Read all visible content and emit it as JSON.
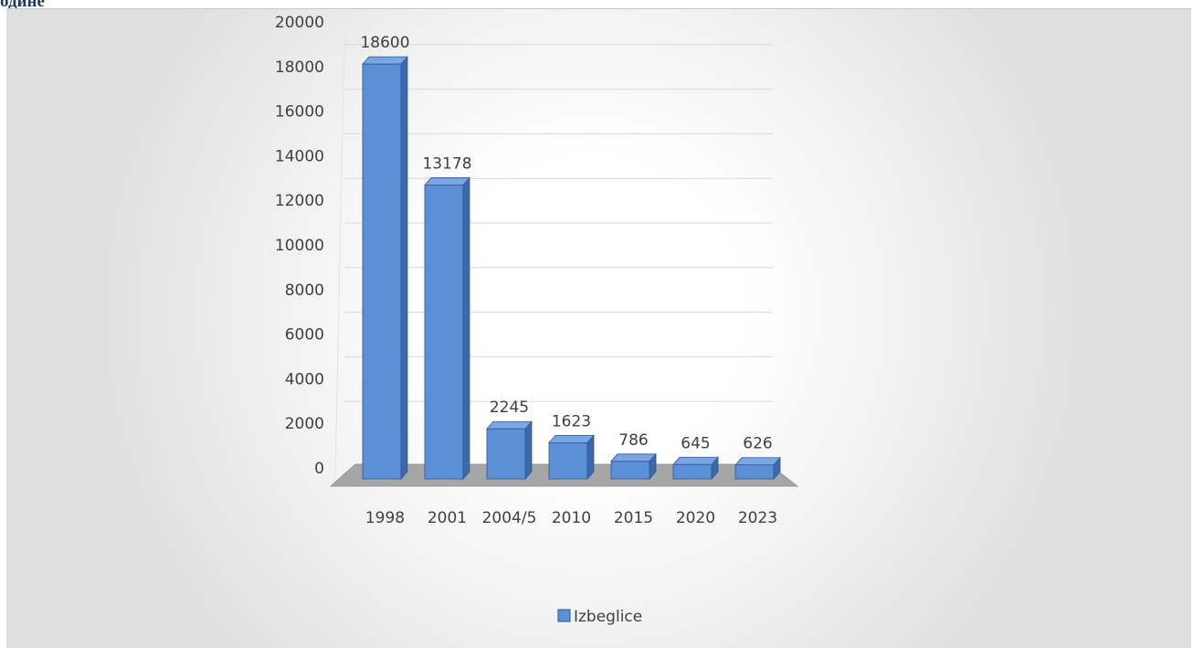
{
  "document": {
    "heading_fragment": "одине"
  },
  "chart_data": {
    "type": "bar",
    "variant": "3d-column",
    "title": "",
    "xlabel": "",
    "ylabel": "",
    "categories": [
      "1998",
      "2001",
      "2004/5",
      "2010",
      "2015",
      "2020",
      "2023"
    ],
    "series": [
      {
        "name": "Izbeglice",
        "values": [
          18600,
          13178,
          2245,
          1623,
          786,
          645,
          626
        ]
      }
    ],
    "data_labels": [
      "18600",
      "13178",
      "2245",
      "1623",
      "786",
      "645",
      "626"
    ],
    "ylim": [
      0,
      20000
    ],
    "yticks": [
      0,
      2000,
      4000,
      6000,
      8000,
      10000,
      12000,
      14000,
      16000,
      18000,
      20000
    ],
    "ytick_labels": [
      "0",
      "2000",
      "4000",
      "6000",
      "8000",
      "10000",
      "12000",
      "14000",
      "16000",
      "18000",
      "20000"
    ],
    "grid": true,
    "legend": "bottom-center",
    "colors": {
      "bar_front": "#5b8fd6",
      "bar_top": "#7aa6e3",
      "bar_side": "#3d69a8",
      "bar_stroke": "#2f5597",
      "floor": "#a6a6a6",
      "grid": "#d9d9d9"
    }
  }
}
